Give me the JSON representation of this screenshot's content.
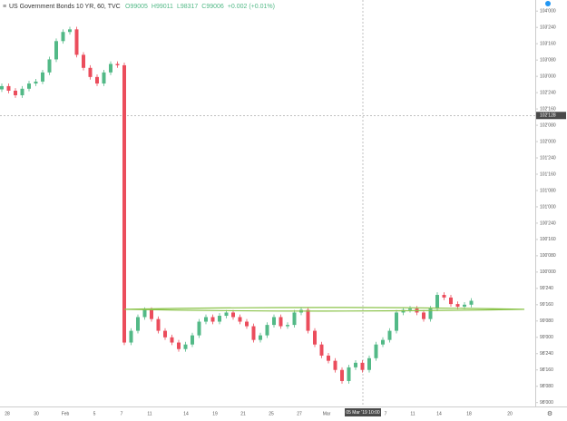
{
  "chart_data": {
    "type": "candlestick",
    "title": "US Government Bonds 10 YR, 60, TVC",
    "ohlc_header": [
      "O99005",
      "H99011",
      "L98317",
      "C99006",
      "+0.002 (+0.01%)"
    ],
    "open": [
      102.8,
      102.85,
      102.78,
      102.71,
      102.81,
      102.89,
      102.92,
      103.06,
      103.26,
      103.54,
      103.68,
      103.72,
      103.33,
      103.13,
      102.99,
      102.89,
      103.06,
      103.19,
      103.17,
      98.92,
      99.1,
      99.31,
      99.42,
      99.28,
      99.1,
      99.0,
      98.92,
      98.82,
      98.89,
      99.03,
      99.24,
      99.31,
      99.24,
      99.33,
      99.38,
      99.31,
      99.24,
      99.17,
      98.96,
      99.03,
      99.19,
      99.31,
      99.17,
      99.19,
      99.38,
      99.42,
      99.1,
      98.89,
      98.72,
      98.64,
      98.5,
      98.33,
      98.54,
      98.61,
      98.5,
      98.68,
      98.89,
      98.96,
      99.1,
      99.38,
      99.42,
      99.44,
      99.38,
      99.28,
      99.44,
      99.65,
      99.61,
      99.51,
      99.47,
      99.5
    ],
    "high": [
      102.89,
      102.89,
      102.82,
      102.85,
      102.93,
      102.96,
      103.1,
      103.3,
      103.58,
      103.72,
      103.76,
      103.76,
      103.37,
      103.17,
      103.03,
      103.1,
      103.23,
      103.23,
      103.21,
      99.14,
      99.35,
      99.46,
      99.46,
      99.32,
      99.14,
      99.04,
      98.96,
      98.93,
      99.07,
      99.28,
      99.35,
      99.35,
      99.37,
      99.42,
      99.42,
      99.35,
      99.28,
      99.21,
      99.07,
      99.23,
      99.35,
      99.35,
      99.23,
      99.42,
      99.46,
      99.46,
      99.14,
      98.93,
      98.76,
      98.68,
      98.54,
      98.58,
      98.65,
      98.65,
      98.72,
      98.93,
      99.0,
      99.14,
      99.42,
      99.46,
      99.48,
      99.48,
      99.42,
      99.48,
      99.69,
      99.69,
      99.65,
      99.55,
      99.54,
      99.6
    ],
    "low": [
      102.76,
      102.74,
      102.67,
      102.67,
      102.77,
      102.85,
      102.88,
      103.02,
      103.22,
      103.5,
      103.64,
      103.29,
      103.09,
      102.95,
      102.85,
      102.85,
      103.02,
      103.13,
      98.88,
      98.88,
      99.06,
      99.27,
      99.24,
      99.06,
      98.96,
      98.88,
      98.78,
      98.78,
      98.85,
      98.99,
      99.2,
      99.2,
      99.2,
      99.29,
      99.27,
      99.2,
      99.13,
      98.92,
      98.92,
      98.99,
      99.15,
      99.13,
      99.13,
      99.15,
      99.34,
      99.06,
      98.85,
      98.68,
      98.6,
      98.46,
      98.29,
      98.29,
      98.5,
      98.46,
      98.46,
      98.64,
      98.85,
      98.92,
      99.06,
      99.34,
      99.38,
      99.34,
      99.24,
      99.24,
      99.4,
      99.57,
      99.47,
      99.43,
      99.43,
      99.46
    ],
    "close": [
      102.85,
      102.78,
      102.71,
      102.81,
      102.89,
      102.92,
      103.06,
      103.26,
      103.54,
      103.68,
      103.72,
      103.33,
      103.13,
      102.99,
      102.89,
      103.06,
      103.19,
      103.17,
      98.92,
      99.1,
      99.31,
      99.42,
      99.28,
      99.1,
      99.0,
      98.92,
      98.82,
      98.89,
      99.03,
      99.24,
      99.31,
      99.24,
      99.33,
      99.38,
      99.31,
      99.24,
      99.17,
      98.96,
      99.03,
      99.19,
      99.31,
      99.17,
      99.19,
      99.38,
      99.42,
      99.1,
      98.89,
      98.72,
      98.64,
      98.5,
      98.33,
      98.54,
      98.61,
      98.5,
      98.68,
      98.89,
      98.96,
      99.1,
      99.38,
      99.42,
      99.44,
      99.38,
      99.28,
      99.44,
      99.65,
      99.61,
      99.51,
      99.47,
      99.5,
      99.56
    ],
    "up_color": "#53b987",
    "down_color": "#eb4d5c",
    "support_level": 99.43,
    "support_color": "#8bc34a",
    "x_axis_labels": [
      "28",
      "30",
      "Feb",
      "5",
      "7",
      "11",
      "14",
      "19",
      "21",
      "25",
      "27",
      "Mar",
      "7",
      "11",
      "14",
      "18",
      "20"
    ],
    "crosshair": {
      "price": 102.4,
      "price_label": "102'128",
      "time_label": "05 Mar '19 10:00"
    },
    "ylim": [
      97.94,
      104.17
    ],
    "yticks": [
      {
        "value": 98.0,
        "label": "98'000"
      },
      {
        "value": 98.25,
        "label": "98'080"
      },
      {
        "value": 98.5,
        "label": "98'160"
      },
      {
        "value": 98.75,
        "label": "98'240"
      },
      {
        "value": 99.0,
        "label": "99'000"
      },
      {
        "value": 99.25,
        "label": "99'080"
      },
      {
        "value": 99.5,
        "label": "99'160"
      },
      {
        "value": 99.75,
        "label": "99'240"
      },
      {
        "value": 100.0,
        "label": "100'000"
      },
      {
        "value": 100.25,
        "label": "100'080"
      },
      {
        "value": 100.5,
        "label": "100'160"
      },
      {
        "value": 100.75,
        "label": "100'240"
      },
      {
        "value": 101.0,
        "label": "101'000"
      },
      {
        "value": 101.25,
        "label": "101'080"
      },
      {
        "value": 101.5,
        "label": "101'160"
      },
      {
        "value": 101.75,
        "label": "101'240"
      },
      {
        "value": 102.0,
        "label": "102'000"
      },
      {
        "value": 102.25,
        "label": "102'080"
      },
      {
        "value": 102.5,
        "label": "102'160"
      },
      {
        "value": 102.75,
        "label": "102'240"
      },
      {
        "value": 103.0,
        "label": "103'000"
      },
      {
        "value": 103.25,
        "label": "103'080"
      },
      {
        "value": 103.5,
        "label": "103'160"
      },
      {
        "value": 103.75,
        "label": "103'240"
      },
      {
        "value": 104.0,
        "label": "104'000"
      }
    ]
  }
}
